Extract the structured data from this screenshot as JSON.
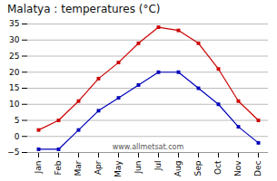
{
  "chart_data": {
    "type": "line",
    "title": "Malatya : temperatures (°C)",
    "categories": [
      "Jan",
      "Feb",
      "Mar",
      "Apr",
      "May",
      "Jun",
      "Jul",
      "Aug",
      "Sep",
      "Oct",
      "Nov",
      "Dec"
    ],
    "series": [
      {
        "color": "#cc0000",
        "marker": "square",
        "values": [
          2,
          5,
          11,
          18,
          23,
          29,
          34,
          33,
          29,
          21,
          11,
          5
        ]
      },
      {
        "color": "#0000bb",
        "marker": "square",
        "values": [
          -4,
          -4,
          2,
          8,
          12,
          16,
          20,
          20,
          15,
          10,
          3,
          -2
        ]
      }
    ],
    "ylim": [
      -5,
      35
    ],
    "yticks": [
      -5,
      0,
      5,
      10,
      15,
      20,
      25,
      30,
      35
    ],
    "grid": true,
    "annotation": "www.allmetsat.com"
  }
}
